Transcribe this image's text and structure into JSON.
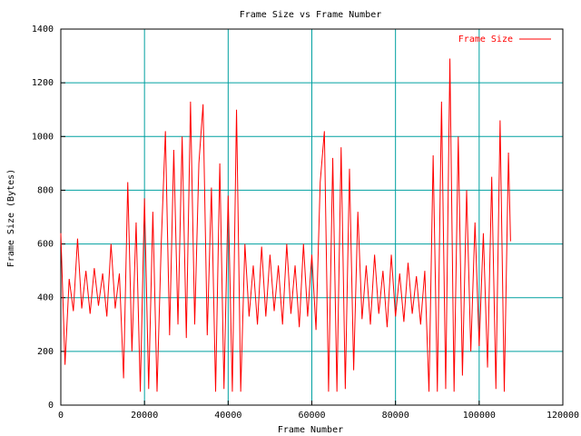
{
  "chart_data": {
    "type": "line",
    "title": "Frame Size vs Frame Number",
    "xlabel": "Frame Number",
    "ylabel": "Frame Size (Bytes)",
    "xlim": [
      0,
      120000
    ],
    "ylim": [
      0,
      1400
    ],
    "xticks": [
      0,
      20000,
      40000,
      60000,
      80000,
      100000,
      120000
    ],
    "yticks": [
      0,
      200,
      400,
      600,
      800,
      1000,
      1200,
      1400
    ],
    "grid": true,
    "legend": "top-right",
    "x": [
      0,
      1000,
      2000,
      3000,
      4000,
      5000,
      6000,
      7000,
      8000,
      9000,
      10000,
      11000,
      12000,
      13000,
      14000,
      15000,
      16000,
      17000,
      18000,
      19000,
      20000,
      21000,
      22000,
      23000,
      24000,
      25000,
      26000,
      27000,
      28000,
      29000,
      30000,
      31000,
      32000,
      33000,
      34000,
      35000,
      36000,
      37000,
      38000,
      39000,
      40000,
      41000,
      42000,
      43000,
      44000,
      45000,
      46000,
      47000,
      48000,
      49000,
      50000,
      51000,
      52000,
      53000,
      54000,
      55000,
      56000,
      57000,
      58000,
      59000,
      60000,
      61000,
      62000,
      63000,
      64000,
      65000,
      66000,
      67000,
      68000,
      69000,
      70000,
      71000,
      72000,
      73000,
      74000,
      75000,
      76000,
      77000,
      78000,
      79000,
      80000,
      81000,
      82000,
      83000,
      84000,
      85000,
      86000,
      87000,
      88000,
      89000,
      90000,
      91000,
      92000,
      93000,
      94000,
      95000,
      96000,
      97000,
      98000,
      99000,
      100000,
      101000,
      102000,
      103000,
      104000,
      105000,
      106000,
      107000,
      107500
    ],
    "series": [
      {
        "name": "Frame Size",
        "color": "#ff0000",
        "values": [
          640,
          150,
          470,
          350,
          620,
          360,
          500,
          340,
          510,
          370,
          490,
          330,
          600,
          360,
          490,
          100,
          830,
          200,
          680,
          50,
          770,
          60,
          720,
          50,
          600,
          1020,
          260,
          950,
          300,
          1000,
          250,
          1130,
          300,
          900,
          1120,
          260,
          810,
          50,
          900,
          60,
          780,
          50,
          1100,
          50,
          600,
          330,
          520,
          300,
          590,
          330,
          560,
          350,
          520,
          300,
          600,
          340,
          520,
          290,
          600,
          330,
          560,
          280,
          830,
          1020,
          50,
          920,
          50,
          960,
          60,
          880,
          130,
          720,
          320,
          520,
          300,
          560,
          340,
          500,
          290,
          560,
          330,
          490,
          310,
          530,
          340,
          480,
          300,
          500,
          50,
          930,
          50,
          1130,
          60,
          1290,
          50,
          1000,
          110,
          800,
          200,
          680,
          220,
          640,
          140,
          850,
          60,
          1060,
          50,
          940,
          610
        ]
      }
    ]
  }
}
